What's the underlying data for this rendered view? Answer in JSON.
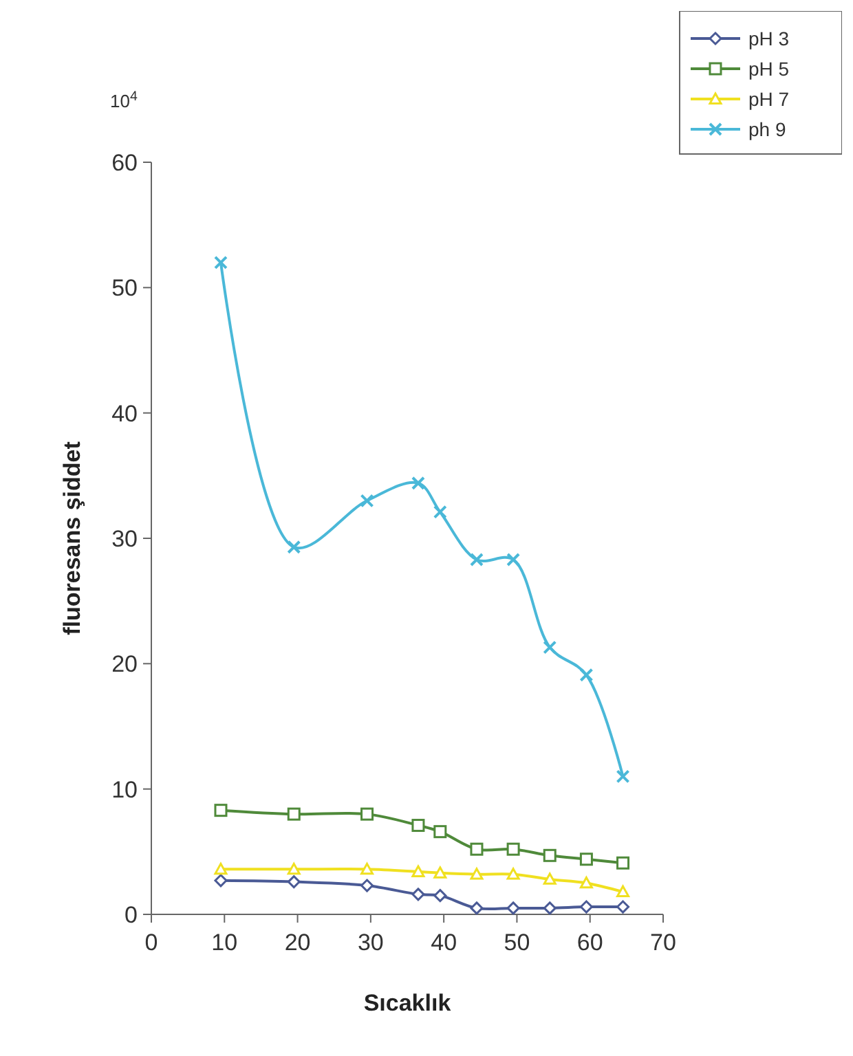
{
  "chart_data": {
    "type": "line",
    "xlabel": "Sıcaklık",
    "ylabel": "fluoresans şiddet",
    "annotations": [
      "10$^{4}$"
    ],
    "xlim": [
      0,
      70
    ],
    "xticks": [
      0,
      10,
      20,
      30,
      40,
      50,
      60,
      70
    ],
    "ylim": [
      0,
      60
    ],
    "yticks": [
      0,
      10,
      20,
      30,
      40,
      50,
      60
    ],
    "x": [
      9.5,
      19.5,
      29.5,
      36.5,
      39.5,
      44.5,
      49.5,
      54.5,
      59.5,
      64.5
    ],
    "grid": false,
    "legend": "top right",
    "line_style": "solid",
    "series": [
      {
        "name": "pH 3",
        "color": "#4a5a95",
        "marker": "diamond",
        "values": [
          2.7,
          2.6,
          2.3,
          1.6,
          1.5,
          0.5,
          0.5,
          0.5,
          0.6,
          0.6
        ]
      },
      {
        "name": "pH 5",
        "color": "#4f8a3a",
        "marker": "square",
        "values": [
          8.3,
          8.0,
          8.0,
          7.1,
          6.6,
          5.2,
          5.2,
          4.7,
          4.4,
          4.1
        ]
      },
      {
        "name": "pH 7",
        "color": "#f0e020",
        "marker": "triangle",
        "values": [
          3.6,
          3.6,
          3.6,
          3.4,
          3.3,
          3.2,
          3.2,
          2.8,
          2.5,
          1.8
        ]
      },
      {
        "name": "ph 9",
        "color": "#4ab8d8",
        "marker": "cross",
        "values": [
          52.0,
          29.3,
          33.0,
          34.4,
          32.1,
          28.3,
          28.3,
          21.3,
          19.1,
          11.0
        ]
      }
    ]
  }
}
